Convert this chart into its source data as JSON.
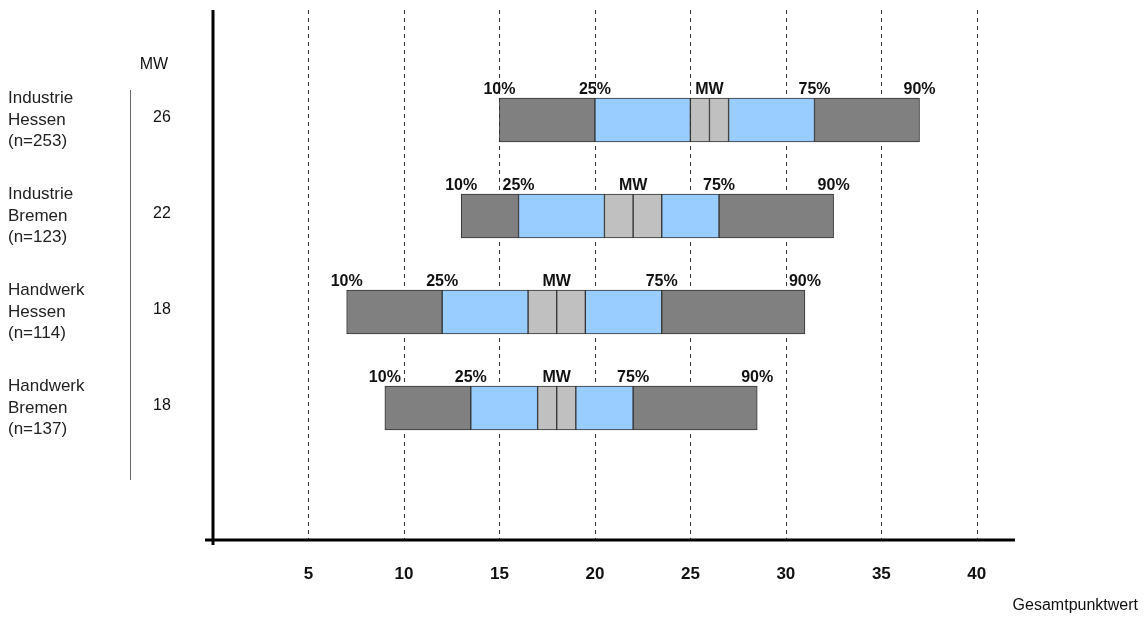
{
  "chart_data": {
    "type": "bar",
    "orientation": "horizontal",
    "categories": [
      "Industrie\nHessen\n(n=253)",
      "Industrie\nBremen\n(n=123)",
      "Handwerk\nHessen\n(n=114)",
      "Handwerk\nBremen\n(n=137)"
    ],
    "series": [
      {
        "color": "#808080",
        "base": [
          15,
          13,
          7,
          9
        ],
        "values": [
          5,
          3,
          5,
          4.5
        ]
      },
      {
        "color": "#99ccff",
        "base": [
          20,
          16,
          12,
          13.5
        ],
        "values": [
          5,
          4.5,
          4.5,
          3.5
        ]
      },
      {
        "color": "#c0c0c0",
        "base": [
          25,
          20.5,
          16.5,
          17
        ],
        "values": [
          1,
          1.5,
          1.5,
          1
        ]
      },
      {
        "color": "#c0c0c0",
        "base": [
          26,
          22,
          18,
          18
        ],
        "values": [
          1,
          1.5,
          1.5,
          1
        ]
      },
      {
        "color": "#99ccff",
        "base": [
          27,
          23.5,
          19.5,
          19
        ],
        "values": [
          4.5,
          3,
          4,
          3
        ]
      },
      {
        "color": "#808080",
        "base": [
          31.5,
          26.5,
          23.5,
          22
        ],
        "values": [
          5.5,
          6,
          7.5,
          6.5
        ]
      }
    ],
    "xlim": [
      0,
      42
    ],
    "xticks": [
      5,
      10,
      15,
      20,
      25,
      30,
      35,
      40
    ],
    "grid": "x",
    "xlabel": "Gesamtpunktwert",
    "annotations": [
      {
        "text": "10%",
        "x": 15,
        "y": "Industrie\nHessen\n(n=253)"
      },
      {
        "text": "25%",
        "x": 20,
        "y": "Industrie\nHessen\n(n=253)"
      },
      {
        "text": "MW",
        "x": 26,
        "y": "Industrie\nHessen\n(n=253)"
      },
      {
        "text": "75%",
        "x": 31.5,
        "y": "Industrie\nHessen\n(n=253)"
      },
      {
        "text": "90%",
        "x": 37,
        "y": "Industrie\nHessen\n(n=253)"
      },
      {
        "text": "10%",
        "x": 13,
        "y": "Industrie\nBremen\n(n=123)"
      },
      {
        "text": "25%",
        "x": 16,
        "y": "Industrie\nBremen\n(n=123)"
      },
      {
        "text": "MW",
        "x": 22,
        "y": "Industrie\nBremen\n(n=123)"
      },
      {
        "text": "75%",
        "x": 26.5,
        "y": "Industrie\nBremen\n(n=123)"
      },
      {
        "text": "90%",
        "x": 32.5,
        "y": "Industrie\nBremen\n(n=123)"
      },
      {
        "text": "10%",
        "x": 7,
        "y": "Handwerk\nHessen\n(n=114)"
      },
      {
        "text": "25%",
        "x": 12,
        "y": "Handwerk\nHessen\n(n=114)"
      },
      {
        "text": "MW",
        "x": 18,
        "y": "Handwerk\nHessen\n(n=114)"
      },
      {
        "text": "75%",
        "x": 23.5,
        "y": "Handwerk\nHessen\n(n=114)"
      },
      {
        "text": "90%",
        "x": 31,
        "y": "Handwerk\nHessen\n(n=114)"
      },
      {
        "text": "10%",
        "x": 9,
        "y": "Handwerk\nBremen\n(n=137)"
      },
      {
        "text": "25%",
        "x": 13.5,
        "y": "Handwerk\nBremen\n(n=137)"
      },
      {
        "text": "MW",
        "x": 18,
        "y": "Handwerk\nBremen\n(n=137)"
      },
      {
        "text": "75%",
        "x": 22,
        "y": "Handwerk\nBremen\n(n=137)"
      },
      {
        "text": "90%",
        "x": 28.5,
        "y": "Handwerk\nBremen\n(n=137)"
      },
      "MW",
      "26",
      "22",
      "18",
      "18"
    ]
  }
}
